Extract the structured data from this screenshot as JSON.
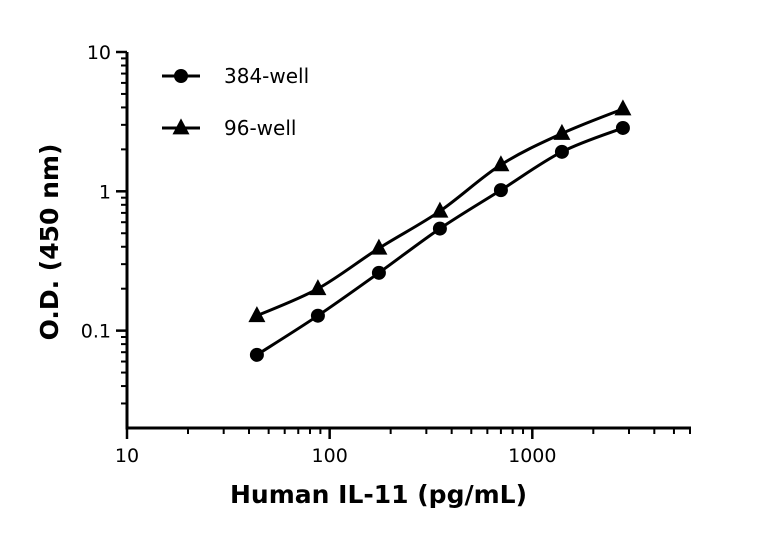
{
  "chart_data": {
    "type": "line",
    "xlabel": "Human IL-11 (pg/mL)",
    "ylabel": "O.D. (450 nm)",
    "xscale": "log",
    "yscale": "log",
    "xlim": [
      10,
      6000
    ],
    "ylim": [
      0.02,
      10
    ],
    "xticks": [
      {
        "value": 10,
        "label": "10"
      },
      {
        "value": 100,
        "label": "100"
      },
      {
        "value": 1000,
        "label": "1000"
      }
    ],
    "yticks": [
      {
        "value": 0.1,
        "label": "0.1"
      },
      {
        "value": 1,
        "label": "1"
      },
      {
        "value": 10,
        "label": "10"
      }
    ],
    "grid": false,
    "legend": "top-left",
    "colors": {
      "line": "#000000"
    },
    "series": [
      {
        "name": "384-well",
        "marker": "circle",
        "x": [
          43.75,
          87.5,
          175,
          350,
          700,
          1400,
          2800
        ],
        "y": [
          0.067,
          0.128,
          0.26,
          0.54,
          1.02,
          1.92,
          2.85
        ]
      },
      {
        "name": "96-well",
        "marker": "triangle",
        "x": [
          43.75,
          87.5,
          175,
          350,
          700,
          1400,
          2800
        ],
        "y": [
          0.128,
          0.2,
          0.39,
          0.72,
          1.55,
          2.6,
          3.9
        ]
      }
    ]
  }
}
